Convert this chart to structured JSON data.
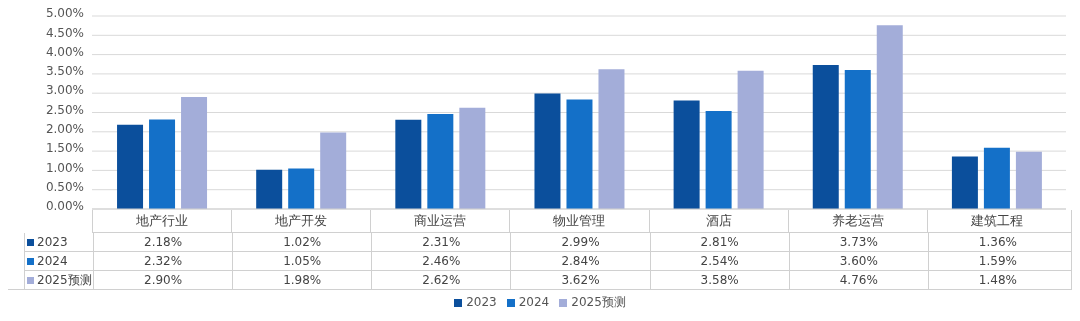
{
  "chart_data": {
    "type": "bar",
    "categories": [
      "地产行业",
      "地产开发",
      "商业运营",
      "物业管理",
      "酒店",
      "养老运营",
      "建筑工程"
    ],
    "series": [
      {
        "name": "2023",
        "color": "#0b4f9c",
        "values": [
          2.18,
          1.02,
          2.31,
          2.99,
          2.81,
          3.73,
          1.36
        ],
        "value_labels": [
          "2.18%",
          "1.02%",
          "2.31%",
          "2.99%",
          "2.81%",
          "3.73%",
          "1.36%"
        ]
      },
      {
        "name": "2024",
        "color": "#1470c8",
        "values": [
          2.32,
          1.05,
          2.46,
          2.84,
          2.54,
          3.6,
          1.59
        ],
        "value_labels": [
          "2.32%",
          "1.05%",
          "2.46%",
          "2.84%",
          "2.54%",
          "3.60%",
          "1.59%"
        ]
      },
      {
        "name": "2025预测",
        "color": "#a3add9",
        "values": [
          2.9,
          1.98,
          2.62,
          3.62,
          3.58,
          4.76,
          1.48
        ],
        "value_labels": [
          "2.90%",
          "1.98%",
          "2.62%",
          "3.62%",
          "3.58%",
          "4.76%",
          "1.48%"
        ]
      }
    ],
    "ylim": [
      0,
      5
    ],
    "yticks": [
      {
        "value": 0,
        "label": "0.00%"
      },
      {
        "value": 0.5,
        "label": "0.50%"
      },
      {
        "value": 1,
        "label": "1.00%"
      },
      {
        "value": 1.5,
        "label": "1.50%"
      },
      {
        "value": 2,
        "label": "2.00%"
      },
      {
        "value": 2.5,
        "label": "2.50%"
      },
      {
        "value": 3,
        "label": "3.00%"
      },
      {
        "value": 3.5,
        "label": "3.50%"
      },
      {
        "value": 4,
        "label": "4.00%"
      },
      {
        "value": 4.5,
        "label": "4.50%"
      },
      {
        "value": 5,
        "label": "5.00%"
      }
    ],
    "grid": "y",
    "legend": "bottom"
  }
}
